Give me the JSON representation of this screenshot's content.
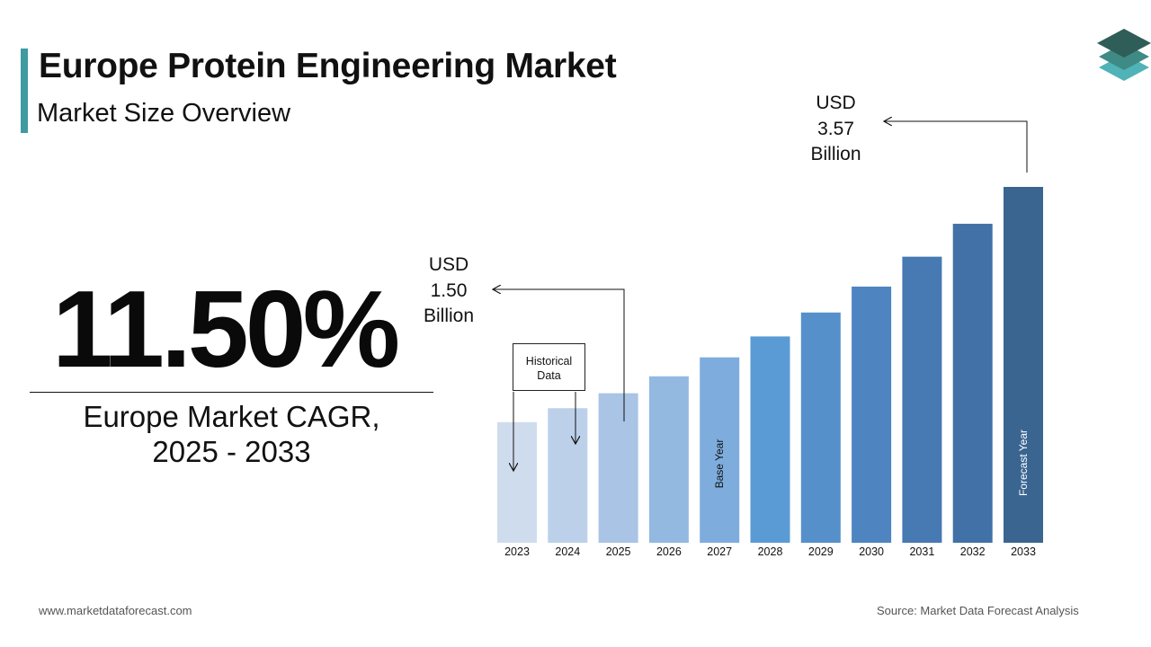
{
  "header": {
    "title": "Europe Protein Engineering Market",
    "subtitle": "Market Size Overview",
    "accent_color": "#3f9aa1"
  },
  "logo": {
    "icon": "stacked-layers-icon",
    "colors": [
      "#2f5d58",
      "#3e8a84",
      "#4fb3b7"
    ]
  },
  "kpi": {
    "cagr_value": "11.50%",
    "cagr_label_line1": "Europe Market CAGR,",
    "cagr_label_line2": "2025 - 2033"
  },
  "callouts": {
    "start": {
      "line1": "USD",
      "line2": "1.50",
      "line3": "Billion"
    },
    "end": {
      "line1": "USD",
      "line2": "3.57",
      "line3": "Billion"
    },
    "historical_line1": "Historical",
    "historical_line2": "Data"
  },
  "chart_data": {
    "type": "bar",
    "categories": [
      "2023",
      "2024",
      "2025",
      "2026",
      "2027",
      "2028",
      "2029",
      "2030",
      "2031",
      "2032",
      "2033"
    ],
    "values": [
      1.21,
      1.35,
      1.5,
      1.67,
      1.86,
      2.07,
      2.31,
      2.57,
      2.87,
      3.2,
      3.57
    ],
    "ylim": [
      0,
      3.6
    ],
    "colors": [
      "#cfdcee",
      "#bcd0ea",
      "#a9c4e5",
      "#94b9e1",
      "#7eaddd",
      "#5b9bd5",
      "#5590cb",
      "#4e84c0",
      "#4779b3",
      "#4171a6",
      "#3a6591"
    ],
    "bar_annotations": {
      "2027": "Base Year",
      "2033": "Forecast Year"
    },
    "grid": false,
    "legend": "none"
  },
  "footer": {
    "website": "www.marketdataforecast.com",
    "source": "Source: Market Data Forecast Analysis"
  }
}
